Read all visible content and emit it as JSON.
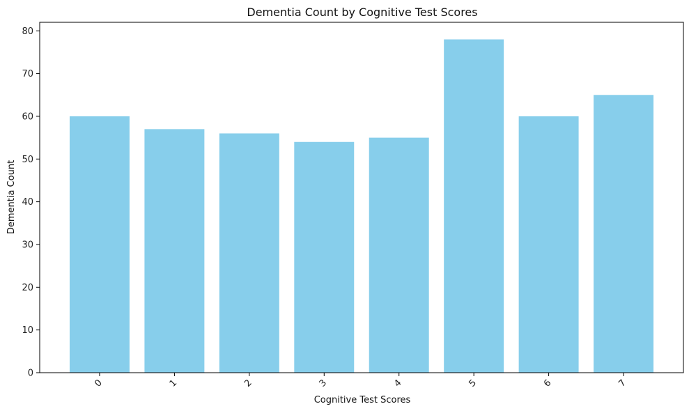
{
  "colors": {
    "bar": "#87CEEB",
    "axis": "#000000",
    "background": "#ffffff"
  },
  "chart_data": {
    "type": "bar",
    "title": "Dementia Count by Cognitive Test Scores",
    "xlabel": "Cognitive Test Scores",
    "ylabel": "Dementia Count",
    "categories": [
      "0",
      "1",
      "2",
      "3",
      "4",
      "5",
      "6",
      "7"
    ],
    "values": [
      60,
      57,
      56,
      54,
      55,
      78,
      60,
      65
    ],
    "ylim": [
      0,
      82
    ],
    "yticks": [
      "0",
      "10",
      "20",
      "30",
      "40",
      "50",
      "60",
      "70",
      "80"
    ],
    "grid": false,
    "legend": "none",
    "xtick_rotation": "45 degrees"
  }
}
